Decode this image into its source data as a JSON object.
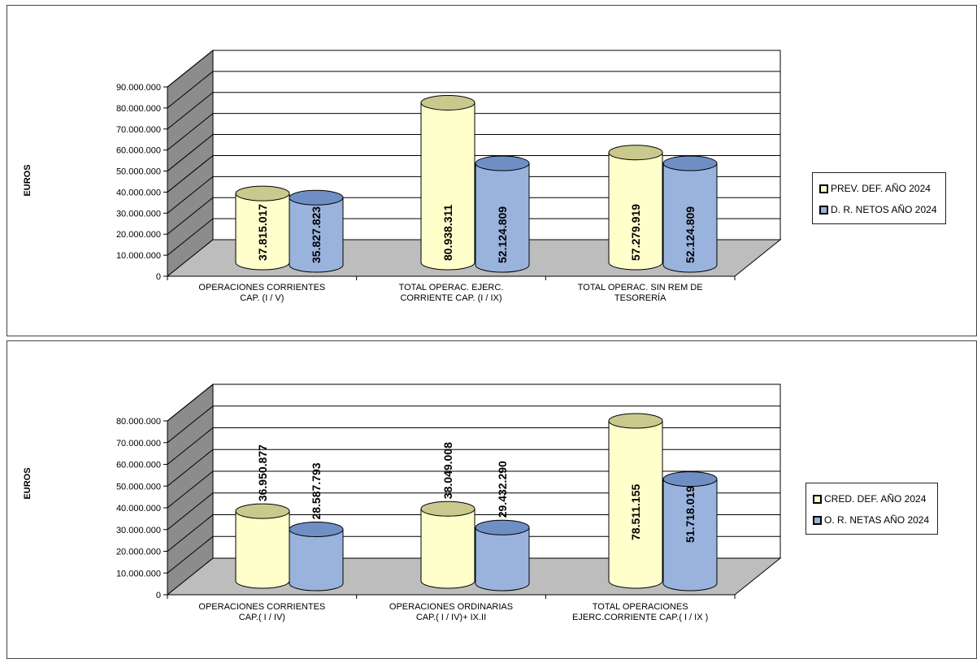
{
  "chart_data": [
    {
      "type": "bar",
      "style": "3d-cylinder",
      "ylabel": "EUROS",
      "ylim": [
        0,
        90000000
      ],
      "yticks": [
        "0",
        "10.000.000",
        "20.000.000",
        "30.000.000",
        "40.000.000",
        "50.000.000",
        "60.000.000",
        "70.000.000",
        "80.000.000",
        "90.000.000"
      ],
      "categories": [
        [
          "OPERACIONES CORRIENTES",
          "CAP. (I / V)"
        ],
        [
          "TOTAL OPERAC. EJERC.",
          "CORRIENTE CAP. (I / IX)"
        ],
        [
          "TOTAL OPERAC. SIN REM DE",
          "TESORERÍA"
        ]
      ],
      "series": [
        {
          "name": "PREV. DEF. AÑO 2024",
          "color": "#FFFFCC",
          "values": [
            37815017,
            80938311,
            57279919
          ],
          "labels": [
            "37.815.017",
            "80.938.311",
            "57.279.919"
          ]
        },
        {
          "name": "D. R. NETOS AÑO 2024",
          "color": "#99B3DD",
          "values": [
            35827823,
            52124809,
            52124809
          ],
          "labels": [
            "35.827.823",
            "52.124.809",
            "52.124.809"
          ]
        }
      ],
      "legend_position": "right",
      "grid": true
    },
    {
      "type": "bar",
      "style": "3d-cylinder",
      "ylabel": "EUROS",
      "ylim": [
        0,
        80000000
      ],
      "yticks": [
        "0",
        "10.000.000",
        "20.000.000",
        "30.000.000",
        "40.000.000",
        "50.000.000",
        "60.000.000",
        "70.000.000",
        "80.000.000"
      ],
      "categories": [
        [
          "OPERACIONES CORRIENTES",
          "CAP.( I / IV)"
        ],
        [
          "OPERACIONES ORDINARIAS",
          "CAP.( I / IV)+ IX.II"
        ],
        [
          "TOTAL OPERACIONES",
          "EJERC.CORRIENTE CAP.( I / IX )"
        ]
      ],
      "series": [
        {
          "name": "CRED. DEF. AÑO 2024",
          "color": "#FFFFCC",
          "values": [
            36950877,
            38049008,
            78511155
          ],
          "labels": [
            "36.950.877",
            "38.049.008",
            "78.511.155"
          ]
        },
        {
          "name": "O. R. NETAS AÑO 2024",
          "color": "#99B3DD",
          "values": [
            28587793,
            29432290,
            51718019
          ],
          "labels": [
            "28.587.793",
            "29.432.290",
            "51.718.019"
          ]
        }
      ],
      "legend_position": "right",
      "grid": true
    }
  ]
}
